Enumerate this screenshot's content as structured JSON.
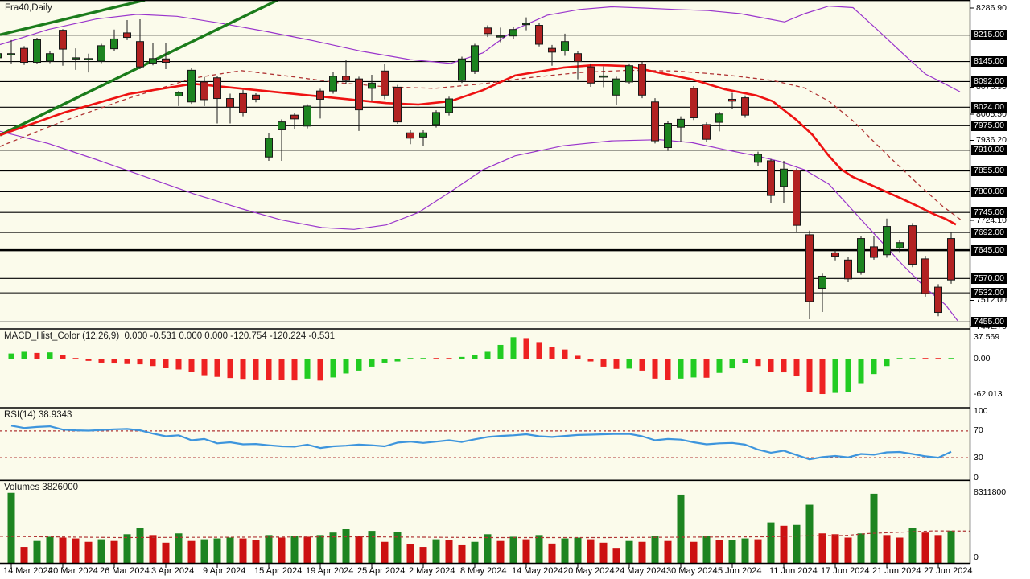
{
  "window": {
    "symbol_label": "Fra40,Daily"
  },
  "colors": {
    "chart_bg": "#FBFBEB",
    "axis_bg": "#FFFFFF",
    "border": "#000000",
    "bull": "#1D8420",
    "bear": "#B22222",
    "outline": "#1A1A1A",
    "ma_fast": "#EE1212",
    "ma_slow_dashed": "#B03434",
    "bollinger": "#9A35CC",
    "trendline": "#1B7C1B",
    "macd_up": "#22CC22",
    "macd_down": "#EE2222",
    "rsi_line": "#3D95DD",
    "dashed_level": "#B03434",
    "level_line": "#000000",
    "tag_bg": "#000000",
    "tag_text": "#FFFFFF"
  },
  "chart_data": {
    "type": "candlestick",
    "symbol": "Fra40",
    "timeframe": "Daily",
    "bars": 74,
    "ylim": [
      7440,
      8308
    ],
    "time_labels": [
      {
        "i": 0,
        "label": "14 Mar 2024"
      },
      {
        "i": 4,
        "label": "20 Mar 2024"
      },
      {
        "i": 8,
        "label": "26 Mar 2024"
      },
      {
        "i": 12,
        "label": "3 Apr 2024"
      },
      {
        "i": 16,
        "label": "9 Apr 2024"
      },
      {
        "i": 20,
        "label": "15 Apr 2024"
      },
      {
        "i": 24,
        "label": "19 Apr 2024"
      },
      {
        "i": 28,
        "label": "25 Apr 2024"
      },
      {
        "i": 32,
        "label": "2 May 2024"
      },
      {
        "i": 36,
        "label": "8 May 2024"
      },
      {
        "i": 40,
        "label": "14 May 2024"
      },
      {
        "i": 44,
        "label": "20 May 2024"
      },
      {
        "i": 48,
        "label": "24 May 2024"
      },
      {
        "i": 52,
        "label": "30 May 2024"
      },
      {
        "i": 56,
        "label": "5 Jun 2024"
      },
      {
        "i": 60,
        "label": "11 Jun 2024"
      },
      {
        "i": 64,
        "label": "17 Jun 2024"
      },
      {
        "i": 68,
        "label": "21 Jun 2024"
      },
      {
        "i": 72,
        "label": "27 Jun 2024"
      }
    ],
    "edge_candle": [
      8155,
      8171,
      8149,
      8166
    ],
    "candles": [
      [
        8163,
        8202,
        8140,
        8166
      ],
      [
        8180,
        8186,
        8136,
        8143
      ],
      [
        8143,
        8208,
        8138,
        8203
      ],
      [
        8146,
        8172,
        8141,
        8166
      ],
      [
        8228,
        8231,
        8134,
        8178
      ],
      [
        8152,
        8180,
        8123,
        8155
      ],
      [
        8150,
        8166,
        8116,
        8153
      ],
      [
        8146,
        8192,
        8141,
        8187
      ],
      [
        8179,
        8230,
        8172,
        8205
      ],
      [
        8221,
        8255,
        8202,
        8209
      ],
      [
        8198,
        8257,
        8125,
        8131
      ],
      [
        8141,
        8195,
        8135,
        8153
      ],
      [
        8152,
        8194,
        8125,
        8143
      ],
      [
        8054,
        8067,
        8027,
        8063
      ],
      [
        8038,
        8127,
        8033,
        8122
      ],
      [
        8091,
        8104,
        8027,
        8044
      ],
      [
        8102,
        8107,
        7981,
        8047
      ],
      [
        8047,
        8060,
        7981,
        8024
      ],
      [
        8060,
        8070,
        8000,
        8010
      ],
      [
        8056,
        8061,
        8037,
        8045
      ],
      [
        7892,
        7955,
        7882,
        7942
      ],
      [
        7964,
        7992,
        7882,
        7985
      ],
      [
        8003,
        8008,
        7967,
        7993
      ],
      [
        7974,
        8032,
        7968,
        8027
      ],
      [
        8067,
        8073,
        7994,
        8045
      ],
      [
        8067,
        8117,
        8060,
        8106
      ],
      [
        8106,
        8148,
        8085,
        8095
      ],
      [
        8099,
        8105,
        7961,
        8017
      ],
      [
        8074,
        8110,
        8040,
        8088
      ],
      [
        8120,
        8138,
        8045,
        8056
      ],
      [
        8077,
        8083,
        7980,
        7985
      ],
      [
        7956,
        7963,
        7926,
        7942
      ],
      [
        7945,
        7963,
        7921,
        7956
      ],
      [
        7978,
        8016,
        7970,
        8010
      ],
      [
        8010,
        8052,
        8002,
        8046
      ],
      [
        8095,
        8158,
        8088,
        8152
      ],
      [
        8120,
        8192,
        8112,
        8187
      ],
      [
        8234,
        8241,
        8210,
        8219
      ],
      [
        8210,
        8235,
        8196,
        8213
      ],
      [
        8213,
        8236,
        8205,
        8230
      ],
      [
        8243,
        8262,
        8228,
        8246
      ],
      [
        8241,
        8248,
        8185,
        8191
      ],
      [
        8180,
        8189,
        8134,
        8170
      ],
      [
        8173,
        8219,
        8160,
        8198
      ],
      [
        8166,
        8173,
        8098,
        8145
      ],
      [
        8131,
        8140,
        8078,
        8088
      ],
      [
        8104,
        8132,
        8077,
        8107
      ],
      [
        8056,
        8105,
        8031,
        8099
      ],
      [
        8091,
        8140,
        8085,
        8134
      ],
      [
        8138,
        8145,
        8048,
        8056
      ],
      [
        8038,
        8048,
        7928,
        7935
      ],
      [
        7917,
        7988,
        7908,
        7981
      ],
      [
        7971,
        8000,
        7932,
        7992
      ],
      [
        8074,
        8080,
        7990,
        7996
      ],
      [
        7978,
        7984,
        7932,
        7939
      ],
      [
        7984,
        8012,
        7960,
        8006
      ],
      [
        8045,
        8062,
        8020,
        8040
      ],
      [
        8049,
        8055,
        7996,
        8003
      ],
      [
        7878,
        7906,
        7868,
        7899
      ],
      [
        7882,
        7887,
        7770,
        7790
      ],
      [
        7814,
        7882,
        7769,
        7860
      ],
      [
        7857,
        7862,
        7694,
        7711
      ],
      [
        7686,
        7697,
        7462,
        7509
      ],
      [
        7544,
        7583,
        7481,
        7576
      ],
      [
        7638,
        7645,
        7618,
        7629
      ],
      [
        7619,
        7627,
        7560,
        7569
      ],
      [
        7587,
        7683,
        7580,
        7676
      ],
      [
        7654,
        7683,
        7620,
        7626
      ],
      [
        7633,
        7729,
        7625,
        7708
      ],
      [
        7651,
        7672,
        7640,
        7665
      ],
      [
        7710,
        7717,
        7600,
        7608
      ],
      [
        7622,
        7630,
        7522,
        7530
      ],
      [
        7547,
        7555,
        7470,
        7480
      ],
      [
        7676,
        7694,
        7556,
        7566
      ]
    ],
    "price_axis": {
      "plain_ticks": [
        8286.9,
        8076.9,
        8005.5,
        7936.2,
        7724.1,
        7512.0,
        7442.7
      ],
      "levels": [
        {
          "price": 8215.0,
          "bold": false
        },
        {
          "price": 8145.0,
          "bold": false
        },
        {
          "price": 8092.0,
          "bold": false
        },
        {
          "price": 8024.0,
          "bold": false
        },
        {
          "price": 7975.0,
          "bold": false
        },
        {
          "price": 7910.0,
          "bold": false
        },
        {
          "price": 7855.0,
          "bold": false
        },
        {
          "price": 7800.0,
          "bold": false
        },
        {
          "price": 7745.0,
          "bold": false
        },
        {
          "price": 7692.0,
          "bold": false
        },
        {
          "price": 7645.0,
          "bold": true
        },
        {
          "price": 7570.0,
          "bold": false
        },
        {
          "price": 7532.0,
          "bold": false
        },
        {
          "price": 7455.0,
          "bold": false
        }
      ]
    },
    "overlays": {
      "ma_fast": [
        [
          0,
          7950
        ],
        [
          80,
          8010
        ],
        [
          160,
          8059
        ],
        [
          240,
          8086
        ],
        [
          320,
          8069
        ],
        [
          400,
          8052
        ],
        [
          480,
          8035
        ],
        [
          520,
          8031
        ],
        [
          560,
          8040
        ],
        [
          600,
          8069
        ],
        [
          640,
          8108
        ],
        [
          700,
          8129
        ],
        [
          740,
          8136
        ],
        [
          780,
          8133
        ],
        [
          820,
          8115
        ],
        [
          860,
          8098
        ],
        [
          900,
          8072
        ],
        [
          940,
          8055
        ],
        [
          960,
          8040
        ],
        [
          990,
          7990
        ],
        [
          1010,
          7950
        ],
        [
          1030,
          7895
        ],
        [
          1045,
          7860
        ],
        [
          1060,
          7839
        ],
        [
          1080,
          7820
        ],
        [
          1100,
          7801
        ],
        [
          1120,
          7782
        ],
        [
          1140,
          7762
        ],
        [
          1160,
          7741
        ],
        [
          1175,
          7728
        ],
        [
          1188,
          7713
        ]
      ],
      "ma_slow_dashed": [
        [
          0,
          7920
        ],
        [
          80,
          7988
        ],
        [
          160,
          8048
        ],
        [
          240,
          8101
        ],
        [
          300,
          8121
        ],
        [
          360,
          8106
        ],
        [
          420,
          8089
        ],
        [
          480,
          8078
        ],
        [
          540,
          8074
        ],
        [
          600,
          8086
        ],
        [
          660,
          8103
        ],
        [
          720,
          8116
        ],
        [
          780,
          8122
        ],
        [
          840,
          8120
        ],
        [
          900,
          8110
        ],
        [
          960,
          8095
        ],
        [
          1000,
          8075
        ],
        [
          1030,
          8040
        ],
        [
          1060,
          7988
        ],
        [
          1100,
          7903
        ],
        [
          1140,
          7822
        ],
        [
          1170,
          7764
        ],
        [
          1195,
          7724
        ]
      ],
      "boll_upper": [
        [
          0,
          8190
        ],
        [
          60,
          8230
        ],
        [
          120,
          8258
        ],
        [
          170,
          8270
        ],
        [
          220,
          8265
        ],
        [
          270,
          8248
        ],
        [
          330,
          8225
        ],
        [
          390,
          8200
        ],
        [
          450,
          8172
        ],
        [
          510,
          8150
        ],
        [
          560,
          8140
        ],
        [
          600,
          8168
        ],
        [
          640,
          8230
        ],
        [
          680,
          8268
        ],
        [
          720,
          8283
        ],
        [
          760,
          8290
        ],
        [
          800,
          8287
        ],
        [
          840,
          8283
        ],
        [
          880,
          8280
        ],
        [
          920,
          8272
        ],
        [
          950,
          8260
        ],
        [
          975,
          8250
        ],
        [
          1000,
          8272
        ],
        [
          1030,
          8292
        ],
        [
          1060,
          8288
        ],
        [
          1090,
          8230
        ],
        [
          1120,
          8170
        ],
        [
          1150,
          8112
        ],
        [
          1175,
          8085
        ],
        [
          1193,
          8065
        ]
      ],
      "boll_lower": [
        [
          0,
          7960
        ],
        [
          60,
          7928
        ],
        [
          120,
          7885
        ],
        [
          180,
          7840
        ],
        [
          240,
          7795
        ],
        [
          300,
          7755
        ],
        [
          350,
          7725
        ],
        [
          400,
          7705
        ],
        [
          440,
          7700
        ],
        [
          480,
          7712
        ],
        [
          520,
          7745
        ],
        [
          560,
          7800
        ],
        [
          600,
          7858
        ],
        [
          640,
          7895
        ],
        [
          700,
          7922
        ],
        [
          760,
          7935
        ],
        [
          820,
          7938
        ],
        [
          860,
          7930
        ],
        [
          900,
          7912
        ],
        [
          940,
          7895
        ],
        [
          970,
          7880
        ],
        [
          1000,
          7858
        ],
        [
          1030,
          7820
        ],
        [
          1060,
          7750
        ],
        [
          1090,
          7680
        ],
        [
          1120,
          7610
        ],
        [
          1150,
          7545
        ],
        [
          1175,
          7500
        ],
        [
          1190,
          7458
        ]
      ],
      "trendlines": [
        [
          [
            0,
            7950
          ],
          [
            345,
            8308
          ]
        ],
        [
          [
            0,
            8216
          ],
          [
            180,
            8308
          ]
        ]
      ]
    },
    "macd": {
      "label": "MACD_Hist_Color (12,26,9)  0.000 -0.531 0.000 0.000 -120.754 -120.224 -0.531",
      "axis_labels": [
        "37.569",
        "0.00",
        "-62.013"
      ],
      "axis_max": 37.569,
      "axis_min": -62.013,
      "values": [
        9,
        12,
        10,
        11,
        6,
        2,
        -4,
        -7,
        -8.5,
        -9.5,
        -10,
        -13,
        -16,
        -19,
        -23,
        -29,
        -32,
        -34,
        -35.5,
        -36.5,
        -37,
        -38,
        -38.2,
        -35,
        -38.5,
        -33,
        -26,
        -21,
        -14,
        -7,
        -5,
        -2,
        -1,
        -1.5,
        -1.8,
        3,
        6,
        12,
        24,
        37.6,
        36,
        29,
        21,
        16,
        5,
        -5,
        -14,
        -18,
        -17.5,
        -21,
        -35,
        -37,
        -35,
        -33,
        -33.5,
        -25,
        -17,
        -8,
        -13,
        -23,
        -24,
        -31,
        -59,
        -62,
        -60,
        -59,
        -43,
        -27,
        -13,
        -2,
        2,
        -1,
        -2,
        -0.531
      ]
    },
    "rsi": {
      "label": "RSI(14) 38.9343",
      "current": 38.9343,
      "overbought": 70,
      "oversold": 30,
      "axis_labels": [
        "100",
        "70",
        "30",
        "0"
      ],
      "values": [
        78,
        74.5,
        76,
        77,
        72,
        71,
        70.5,
        71.5,
        72.5,
        73,
        71,
        66,
        62,
        63.5,
        56,
        58,
        51.5,
        53,
        50,
        50.5,
        48.5,
        47,
        46.5,
        49.5,
        44.5,
        47,
        48,
        49.5,
        48.5,
        47,
        52.5,
        54,
        52,
        54,
        56,
        53.5,
        57.5,
        61,
        62.5,
        63.5,
        65,
        62,
        61,
        62.5,
        64,
        64.5,
        65,
        65.5,
        65.5,
        62,
        56,
        58,
        57,
        53,
        50,
        51.5,
        52,
        49.5,
        42,
        37.5,
        40.5,
        34,
        27.5,
        31,
        32.5,
        30.5,
        35.5,
        34.5,
        38,
        38.5,
        35.5,
        32,
        30,
        38.93
      ]
    },
    "volumes": {
      "label": "Volumes 3826000",
      "current": 3826000,
      "axis_max": 8311800,
      "axis_labels": [
        "8311800",
        "0"
      ],
      "values_millions": [
        8.31,
        1.9,
        2.6,
        3.1,
        3.0,
        2.9,
        2.5,
        2.8,
        2.6,
        3.4,
        4.1,
        3.3,
        2.4,
        3.5,
        2.6,
        2.8,
        2.9,
        3.0,
        2.9,
        2.7,
        3.3,
        3.0,
        3.2,
        3.1,
        3.3,
        3.6,
        4.0,
        3.2,
        3.8,
        2.5,
        3.7,
        2.2,
        1.9,
        2.8,
        2.7,
        2.1,
        2.5,
        3.4,
        2.6,
        3.1,
        2.8,
        3.3,
        2.3,
        2.9,
        3.0,
        2.8,
        2.4,
        1.7,
        2.6,
        2.5,
        3.2,
        2.6,
        8.1,
        2.5,
        3.2,
        2.7,
        2.7,
        2.9,
        2.8,
        4.8,
        4.4,
        4.5,
        6.9,
        3.5,
        3.4,
        3.0,
        3.5,
        8.2,
        3.3,
        3.0,
        4.1,
        3.6,
        3.3,
        3.826
      ],
      "ma_dashed": [
        [
          0,
          3.15
        ],
        [
          150,
          3.0
        ],
        [
          300,
          3.05
        ],
        [
          450,
          3.1
        ],
        [
          600,
          3.0
        ],
        [
          750,
          3.0
        ],
        [
          850,
          3.05
        ],
        [
          950,
          3.1
        ],
        [
          1000,
          3.2
        ],
        [
          1050,
          3.25
        ],
        [
          1080,
          3.5
        ],
        [
          1120,
          3.65
        ],
        [
          1160,
          3.8
        ],
        [
          1205,
          3.78
        ]
      ]
    }
  }
}
